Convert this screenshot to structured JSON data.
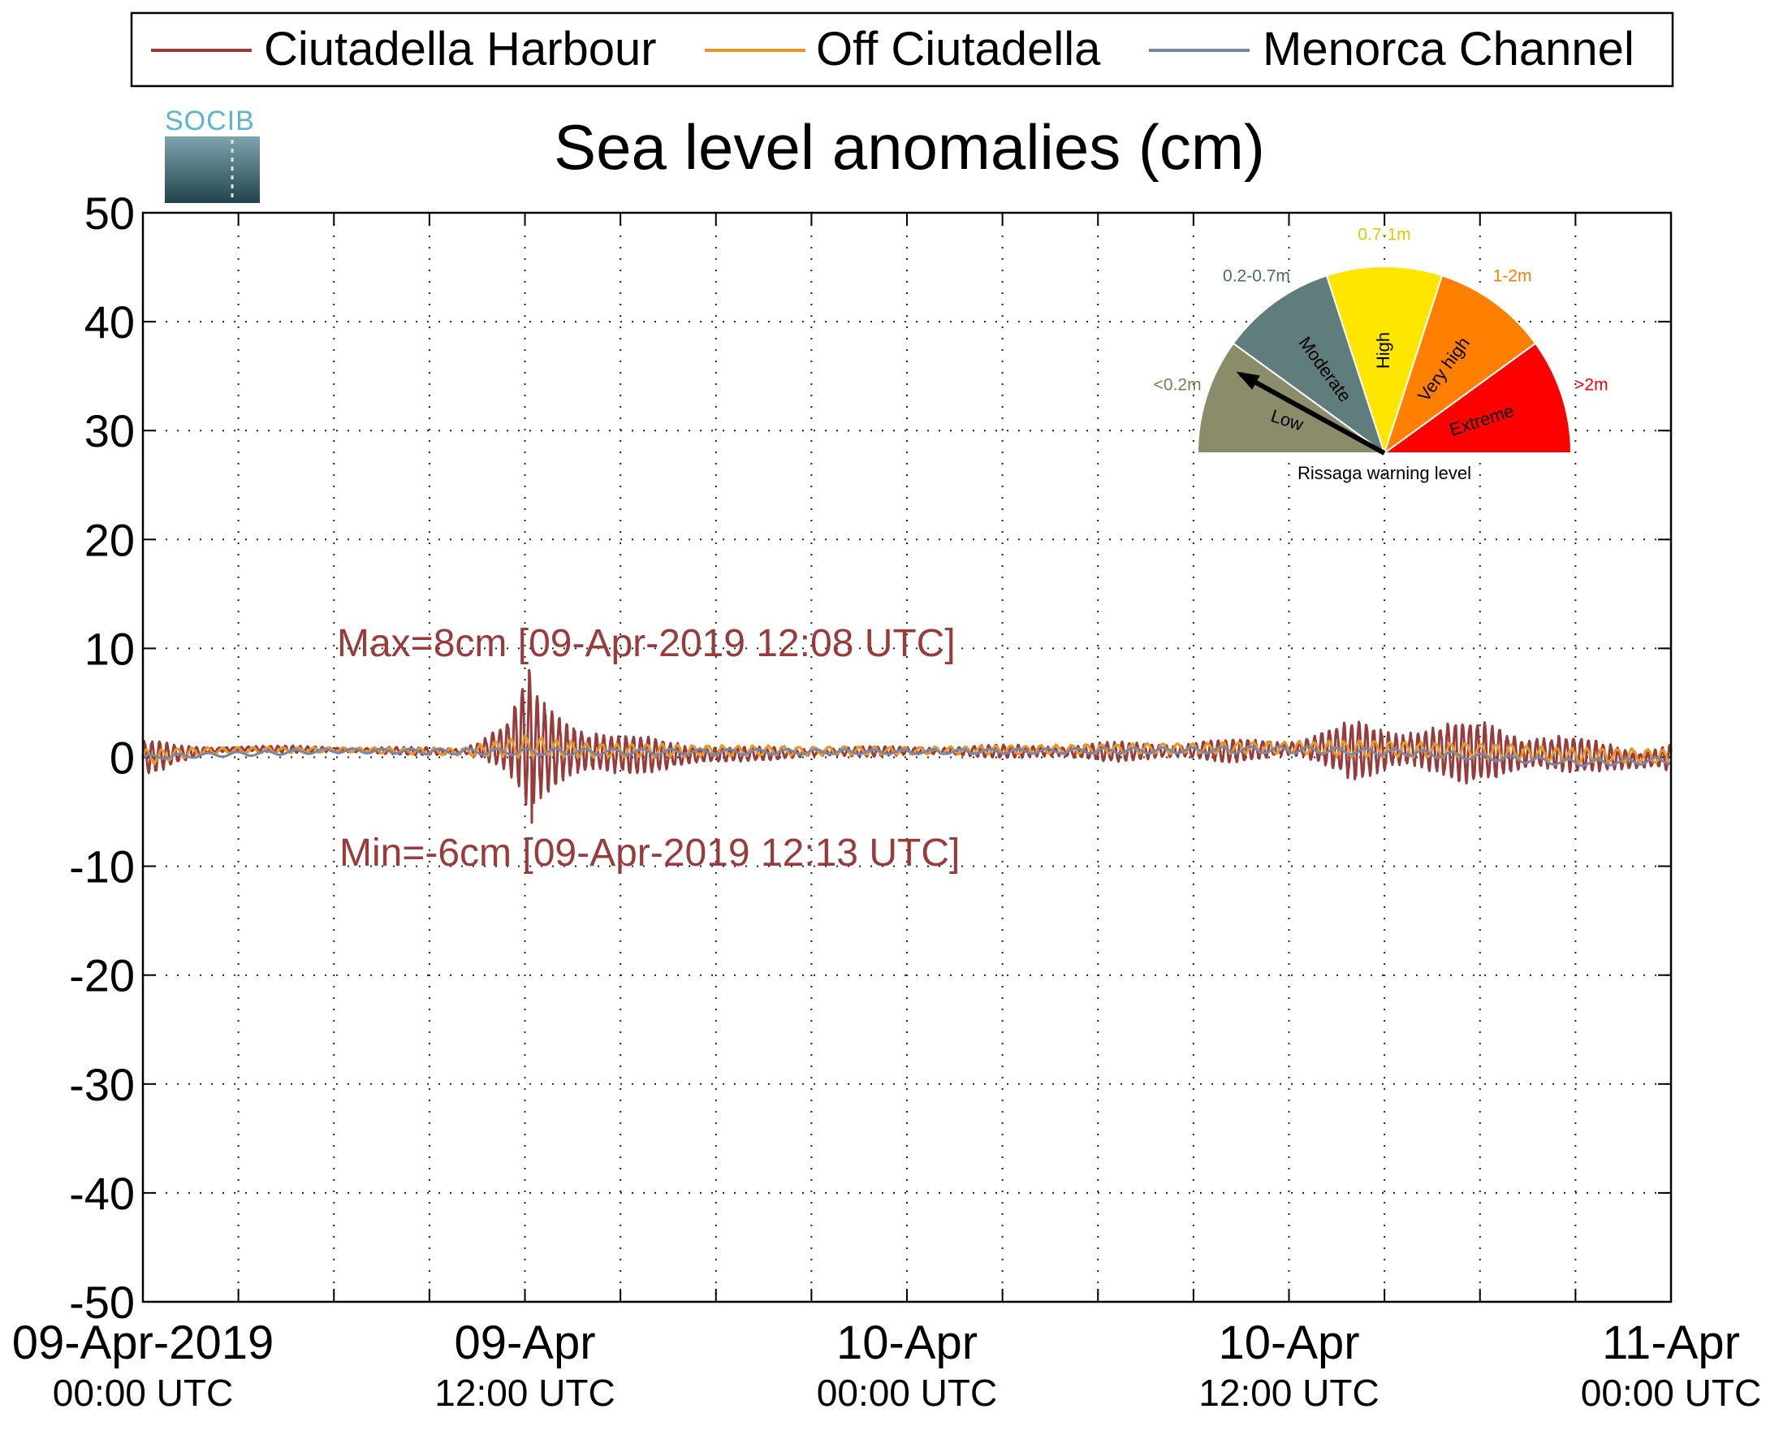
{
  "chart_data": {
    "type": "line",
    "title": "Sea level anomalies (cm)",
    "xlabel": "",
    "ylabel": "",
    "ylim": [
      -50,
      50
    ],
    "yticks": [
      -50,
      -40,
      -30,
      -20,
      -10,
      0,
      10,
      20,
      30,
      40,
      50
    ],
    "xlim": [
      "2019-04-09T00:00Z",
      "2019-04-11T00:00Z"
    ],
    "grid": true,
    "legend_position": "top",
    "xtick_labels": [
      {
        "t": "2019-04-09T00:00Z",
        "line1": "09-Apr-2019",
        "line2": "00:00 UTC"
      },
      {
        "t": "2019-04-09T12:00Z",
        "line1": "09-Apr",
        "line2": "12:00 UTC"
      },
      {
        "t": "2019-04-10T00:00Z",
        "line1": "10-Apr",
        "line2": "00:00 UTC"
      },
      {
        "t": "2019-04-10T12:00Z",
        "line1": "10-Apr",
        "line2": "12:00 UTC"
      },
      {
        "t": "2019-04-11T00:00Z",
        "line1": "11-Apr",
        "line2": "00:00 UTC"
      }
    ],
    "minor_xticks": [
      "03:00",
      "06:00",
      "09:00",
      "15:00",
      "18:00",
      "21:00",
      "27:00",
      "30:00",
      "33:00",
      "39:00",
      "42:00",
      "45:00"
    ],
    "series": [
      {
        "name": "Ciutadella Harbour",
        "color": "#9a3b3b",
        "envelope": {
          "note_x_unit": "hours since 09-Apr-2019 00:00 UTC",
          "t": [
            0,
            1,
            2,
            3,
            6,
            10,
            11.5,
            12.1,
            12.5,
            13.5,
            15,
            17,
            19,
            24,
            30,
            34,
            36,
            37.5,
            38,
            40,
            42.5,
            45,
            47,
            48
          ],
          "mean": [
            0,
            0.3,
            0.6,
            0.8,
            0.7,
            0.5,
            1.0,
            2.0,
            0.8,
            0.6,
            0.3,
            0.2,
            0.3,
            0.6,
            0.5,
            0.6,
            0.8,
            0.9,
            0.6,
            0.7,
            0.4,
            0.3,
            -0.3,
            0
          ],
          "amp": [
            2,
            0.8,
            0.4,
            0.3,
            0.3,
            0.4,
            2.5,
            6.0,
            4.5,
            3.5,
            1.8,
            1.3,
            0.6,
            0.4,
            0.8,
            1.0,
            1.0,
            2.0,
            2.5,
            2.5,
            2.8,
            1.5,
            1.2,
            1.5
          ]
        }
      },
      {
        "name": "Off Ciutadella",
        "color": "#e8952a",
        "envelope": {
          "t": [
            0,
            2,
            6,
            10,
            12,
            14,
            24,
            36,
            38,
            42,
            45,
            48
          ],
          "mean": [
            0,
            0.6,
            0.7,
            0.5,
            1.0,
            0.6,
            0.6,
            0.9,
            0.8,
            0.6,
            0.2,
            0.1
          ],
          "amp": [
            0.7,
            0.3,
            0.2,
            0.3,
            0.9,
            0.6,
            0.3,
            0.5,
            0.7,
            0.6,
            0.6,
            0.6
          ]
        }
      },
      {
        "name": "Menorca Channel",
        "color": "#7b86a6",
        "envelope": {
          "t": [
            0,
            6,
            12,
            24,
            36,
            40,
            45,
            48
          ],
          "mean": [
            0,
            0.6,
            0.5,
            0.5,
            0.7,
            0.4,
            -0.5,
            -0.3
          ],
          "amp": [
            0.2,
            0.2,
            0.3,
            0.2,
            0.3,
            0.3,
            0.3,
            0.3
          ]
        }
      }
    ],
    "annotations": {
      "max_label": "Max=8cm [09-Apr-2019 12:08 UTC]",
      "min_label": "Min=-6cm [09-Apr-2019 12:13 UTC]",
      "color": "#9a3b3b"
    },
    "gauge": {
      "caption": "Rissaga warning level",
      "needle_on": "Low",
      "sectors": [
        {
          "label": "Low",
          "range": "<0.2m",
          "color": "#8a8c6a",
          "text_color": "#7a7c5a"
        },
        {
          "label": "Moderate",
          "range": "0.2-0.7m",
          "color": "#5e7d7c",
          "text_color": "#4a6a6a"
        },
        {
          "label": "High",
          "range": "0.7-1m",
          "color": "#ffe600",
          "text_color": "#e6c800"
        },
        {
          "label": "Very high",
          "range": "1-2m",
          "color": "#ff8000",
          "text_color": "#ff8000"
        },
        {
          "label": "Extreme",
          "range": ">2m",
          "color": "#ff0000",
          "text_color": "#ff0000"
        }
      ]
    },
    "logo": {
      "text": "SOCIB"
    }
  }
}
